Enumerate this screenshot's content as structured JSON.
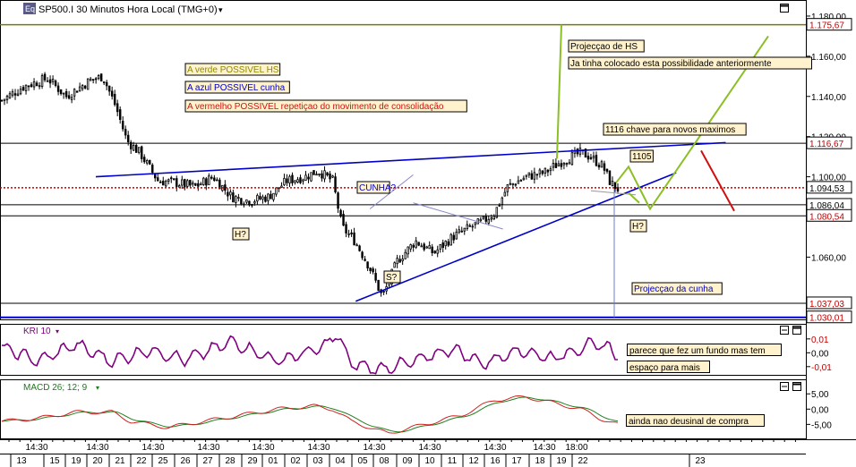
{
  "header": {
    "logo_text": "Eq",
    "title": "SP500.I 30 Minutos Hora Local (TMG+0)",
    "dropdown_glyph": "▾"
  },
  "colors": {
    "up": "#000000",
    "down": "#000000",
    "cunha": "#0000c8",
    "hs": "#8cbf26",
    "consolid": "#d01010",
    "level": "#000000",
    "hs_level": "#7a7a00",
    "current": "#c00000",
    "kri": "#800080",
    "macd": "#d02020",
    "signal": "#208020",
    "note_bg": "#fff2cc"
  },
  "main_panel": {
    "y_ticks": [
      "1.180,00",
      "1.160,00",
      "1.140,00",
      "1.120,00",
      "1.100,00",
      "1.080,00",
      "1.060,00"
    ],
    "price_tags": [
      {
        "label": "1.175,67",
        "value": 1175.67,
        "style": "hs"
      },
      {
        "label": "1.116,67",
        "value": 1116.67,
        "style": "level"
      },
      {
        "label": "1.094,53",
        "value": 1094.53,
        "style": "current"
      },
      {
        "label": "1.086,04",
        "value": 1086.04,
        "style": "level"
      },
      {
        "label": "1.080,54",
        "value": 1080.54,
        "style": "level"
      },
      {
        "label": "1.037,03",
        "value": 1037.03,
        "style": "level"
      },
      {
        "label": "1.030,01",
        "value": 1030.01,
        "style": "cunha"
      }
    ],
    "annotations": [
      {
        "id": "legend-verde",
        "text": "A verde POSSIVEL HS",
        "color": "#8a8a00"
      },
      {
        "id": "legend-azul",
        "text": "A azul POSSIVEL cunha",
        "color": "#0000c8"
      },
      {
        "id": "legend-vermelho",
        "text": "A vermelho POSSIVEL repetiçao do movimento de consolidação",
        "color": "#d01010"
      },
      {
        "id": "projeccao-hs",
        "text": "Projecçao de HS",
        "color": "#000000"
      },
      {
        "id": "ja-tinha",
        "text": "Ja tinha colocado esta possibilidade anteriormente",
        "color": "#000000"
      },
      {
        "id": "chave",
        "text": "1116 chave para novos maximos",
        "color": "#000000"
      },
      {
        "id": "label-1105",
        "text": "1105",
        "color": "#000000"
      },
      {
        "id": "cunha",
        "text": "CUNHA?",
        "color": "#0000c8"
      },
      {
        "id": "h-left",
        "text": "H?",
        "color": "#000000"
      },
      {
        "id": "s-center",
        "text": "S?",
        "color": "#000000"
      },
      {
        "id": "h-right",
        "text": "H?",
        "color": "#000000"
      },
      {
        "id": "projeccao-cunha",
        "text": "Projecçao da cunha",
        "color": "#0000c8"
      }
    ]
  },
  "kri_panel": {
    "title": "KRI 10",
    "y_ticks": [
      "0,01",
      "0,00",
      "-0,01"
    ],
    "notes": [
      "parece que fez um fundo mas tem",
      "espaço para mais"
    ]
  },
  "macd_panel": {
    "title": "MACD 26; 12; 9",
    "y_ticks": [
      "5,00",
      "0,00",
      "-5,00"
    ],
    "notes": [
      "ainda nao deusinal de compra"
    ]
  },
  "time_axis": {
    "time_labels": [
      "14:30",
      "14:30",
      "14:30",
      "14:30",
      "14:30",
      "14:30",
      "14:30",
      "14:30",
      "14:30",
      "14:30",
      "18:00"
    ],
    "date_labels": [
      "13",
      "15",
      "19",
      "20",
      "21",
      "22",
      "25",
      "26",
      "27",
      "28",
      "29",
      "01",
      "02",
      "03",
      "04",
      "05",
      "08",
      "09",
      "10",
      "11",
      "12",
      "16",
      "17",
      "18",
      "19",
      "22",
      "23"
    ]
  },
  "chart_data": {
    "type": "candlestick",
    "instrument": "SP500.I",
    "timeframe": "30 Minutos",
    "candle_count": 230,
    "close_path": [
      [
        0,
        1138
      ],
      [
        12,
        1145
      ],
      [
        25,
        1149
      ],
      [
        35,
        1140
      ],
      [
        48,
        1148
      ],
      [
        55,
        1150
      ],
      [
        62,
        1135
      ],
      [
        68,
        1118
      ],
      [
        75,
        1112
      ],
      [
        85,
        1098
      ],
      [
        95,
        1097
      ],
      [
        105,
        1095
      ],
      [
        115,
        1100
      ],
      [
        125,
        1090
      ],
      [
        135,
        1088
      ],
      [
        145,
        1090
      ],
      [
        155,
        1098
      ],
      [
        165,
        1100
      ],
      [
        172,
        1103
      ],
      [
        180,
        1098
      ],
      [
        185,
        1075
      ],
      [
        192,
        1068
      ],
      [
        200,
        1055
      ],
      [
        207,
        1040
      ],
      [
        215,
        1058
      ],
      [
        225,
        1068
      ],
      [
        235,
        1062
      ],
      [
        245,
        1070
      ],
      [
        255,
        1075
      ],
      [
        262,
        1078
      ],
      [
        268,
        1082
      ],
      [
        275,
        1095
      ],
      [
        285,
        1100
      ],
      [
        295,
        1102
      ],
      [
        305,
        1108
      ],
      [
        315,
        1112
      ],
      [
        320,
        1110
      ],
      [
        327,
        1105
      ],
      [
        331,
        1097
      ],
      [
        335,
        1094
      ]
    ],
    "kri_path": [
      [
        0,
        0.004
      ],
      [
        20,
        -0.006
      ],
      [
        40,
        0.006
      ],
      [
        60,
        -0.006
      ],
      [
        80,
        0.002
      ],
      [
        100,
        -0.005
      ],
      [
        125,
        0.008
      ],
      [
        150,
        -0.006
      ],
      [
        175,
        0.004
      ],
      [
        182,
        0.014
      ],
      [
        190,
        -0.008
      ],
      [
        205,
        -0.012
      ],
      [
        225,
        -0.006
      ],
      [
        245,
        0.003
      ],
      [
        262,
        -0.008
      ],
      [
        280,
        0.002
      ],
      [
        300,
        -0.004
      ],
      [
        320,
        0.006
      ],
      [
        330,
        0.004
      ],
      [
        335,
        -0.002
      ]
    ],
    "macd_path": [
      [
        0,
        -4
      ],
      [
        20,
        -3
      ],
      [
        40,
        -1
      ],
      [
        60,
        -1
      ],
      [
        70,
        -4
      ],
      [
        90,
        -6
      ],
      [
        110,
        -4
      ],
      [
        130,
        -2
      ],
      [
        150,
        0
      ],
      [
        170,
        1
      ],
      [
        180,
        0
      ],
      [
        190,
        -4
      ],
      [
        210,
        -8
      ],
      [
        230,
        -5
      ],
      [
        250,
        -2
      ],
      [
        268,
        3
      ],
      [
        285,
        4
      ],
      [
        300,
        2
      ],
      [
        315,
        0
      ],
      [
        325,
        -3
      ],
      [
        335,
        -5
      ]
    ],
    "current_price": 1094.53,
    "y_range": [
      1029,
      1188
    ],
    "kri_range": [
      -0.014,
      0.017
    ],
    "macd_range": [
      -9,
      8
    ]
  }
}
